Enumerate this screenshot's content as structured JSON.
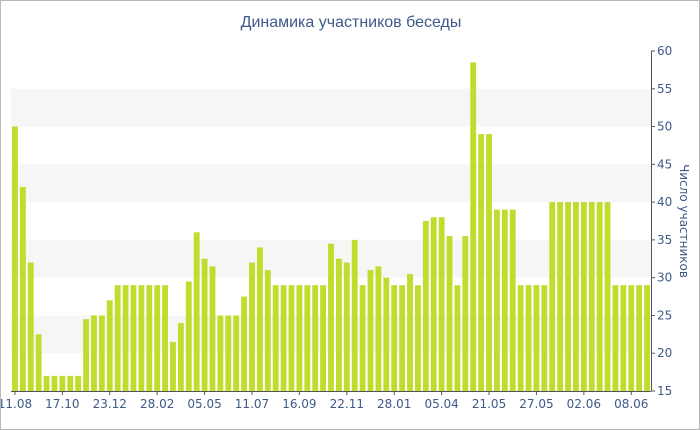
{
  "chart_data": {
    "type": "bar",
    "title": "Динамика участников беседы",
    "ylabel": "Число участников",
    "xlabel": "",
    "ylim": [
      15,
      60
    ],
    "yticks": [
      15,
      20,
      25,
      30,
      35,
      40,
      45,
      50,
      55,
      60
    ],
    "y_axis_side": "right",
    "grid": "alternating horizontal bands",
    "bar_color": "#bedd2c",
    "band_color": "#f6f6f6",
    "text_color": "#3e5a8a",
    "values": [
      50,
      42,
      32,
      22.5,
      17,
      17,
      17,
      17,
      17,
      24.5,
      25,
      25,
      27,
      29,
      29,
      29,
      29,
      29,
      29,
      29,
      21.5,
      24,
      29.5,
      36,
      32.5,
      31.5,
      25,
      25,
      25,
      27.5,
      32,
      34,
      31,
      29,
      29,
      29,
      29,
      29,
      29,
      29,
      34.5,
      32.5,
      32,
      35,
      29,
      31,
      31.5,
      30,
      29,
      29,
      30.5,
      29,
      37.5,
      38,
      38,
      35.5,
      29,
      35.5,
      58.5,
      49,
      49,
      39,
      39,
      39,
      29,
      29,
      29,
      29,
      40,
      40,
      40,
      40,
      40,
      40,
      40,
      40,
      29,
      29,
      29,
      29,
      29
    ],
    "x_tick_labels": [
      {
        "index": 0,
        "label": "11.08"
      },
      {
        "index": 6,
        "label": "17.10"
      },
      {
        "index": 12,
        "label": "23.12"
      },
      {
        "index": 18,
        "label": "28.02"
      },
      {
        "index": 24,
        "label": "05.05"
      },
      {
        "index": 30,
        "label": "11.07"
      },
      {
        "index": 36,
        "label": "16.09"
      },
      {
        "index": 42,
        "label": "22.11"
      },
      {
        "index": 48,
        "label": "28.01"
      },
      {
        "index": 54,
        "label": "05.04"
      },
      {
        "index": 60,
        "label": "21.05"
      },
      {
        "index": 66,
        "label": "27.05"
      },
      {
        "index": 72,
        "label": "02.06"
      },
      {
        "index": 78,
        "label": "08.06"
      }
    ]
  }
}
